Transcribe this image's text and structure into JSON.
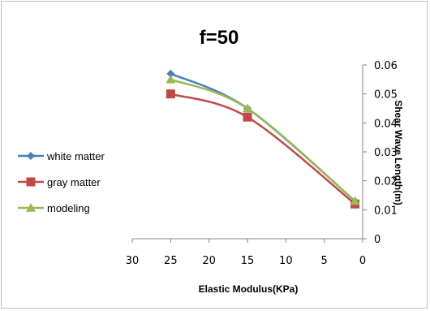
{
  "chart_data": {
    "type": "line",
    "title": "f=50",
    "xlabel": "Elastic Modulus(KPa)",
    "ylabel": "Shear Wave Length(m)",
    "xlim": [
      30,
      0
    ],
    "x_reversed": true,
    "ylim": [
      0,
      0.06
    ],
    "x_ticks": [
      "30",
      "25",
      "20",
      "15",
      "10",
      "5",
      "0"
    ],
    "y_ticks": [
      "0",
      "0.01",
      "0.02",
      "0.03",
      "0.04",
      "0.05",
      "0.06"
    ],
    "grid": false,
    "legend_position": "left",
    "y_axis_side": "right",
    "series": [
      {
        "name": "white matter",
        "color": "#4a7ebb",
        "marker": "diamond",
        "points": [
          [
            25,
            0.057
          ],
          [
            15,
            0.045
          ],
          [
            1,
            0.013
          ]
        ]
      },
      {
        "name": "gray matter",
        "color": "#be4b48",
        "marker": "square",
        "points": [
          [
            25,
            0.05
          ],
          [
            15,
            0.042
          ],
          [
            1,
            0.012
          ]
        ]
      },
      {
        "name": "modeling",
        "color": "#98b954",
        "marker": "triangle",
        "points": [
          [
            25,
            0.055
          ],
          [
            15,
            0.045
          ],
          [
            1,
            0.013
          ]
        ]
      }
    ]
  }
}
